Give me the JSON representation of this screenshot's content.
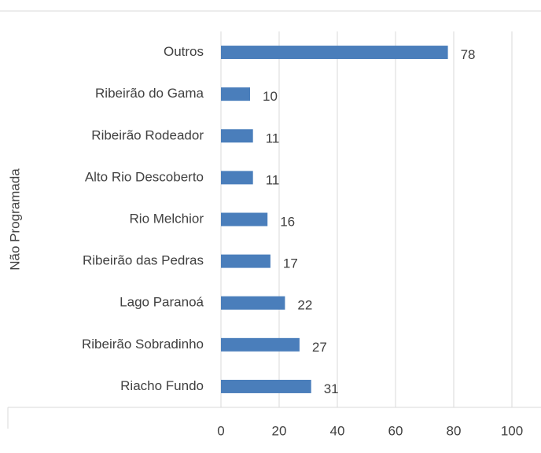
{
  "chart_data": {
    "type": "bar",
    "orientation": "horizontal",
    "y_group_label": "Não Programada",
    "categories": [
      "Outros",
      "Ribeirão do Gama",
      "Ribeirão Rodeador",
      "Alto Rio Descoberto",
      "Rio Melchior",
      "Ribeirão das Pedras",
      "Lago Paranoá",
      "Ribeirão Sobradinho",
      "Riacho Fundo"
    ],
    "values": [
      78,
      10,
      11,
      11,
      16,
      17,
      22,
      27,
      31
    ],
    "color": "#4a7ebb",
    "xlim": [
      0,
      100
    ],
    "xticks": [
      0,
      20,
      40,
      60,
      80,
      100
    ],
    "grid": true
  }
}
